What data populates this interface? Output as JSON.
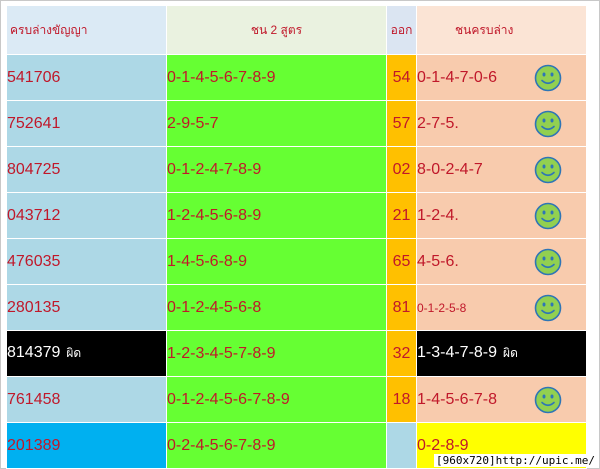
{
  "headers": [
    "ครบล่างขัญญา",
    "ชน 2 สูตร",
    "ออก",
    "ชนครบล่าง"
  ],
  "rows": [
    {
      "num": "541706",
      "pattern": "0-1-4-5-6-7-8-9",
      "out": "54",
      "result": "0-1-4-7-0-6",
      "smiley": true
    },
    {
      "num": "752641",
      "pattern": "2-9-5-7",
      "out": "57",
      "result": "2-7-5.",
      "smiley": true
    },
    {
      "num": "804725",
      "pattern": "0-1-2-4-7-8-9",
      "out": "02",
      "result": "8-0-2-4-7",
      "smiley": true
    },
    {
      "num": "043712",
      "pattern": "1-2-4-5-6-8-9",
      "out": "21",
      "result": "1-2-4.",
      "smiley": true
    },
    {
      "num": "476035",
      "pattern": "1-4-5-6-8-9",
      "out": "65",
      "result": "4-5-6.",
      "smiley": true
    },
    {
      "num": "280135",
      "pattern": "0-1-2-4-5-6-8",
      "out": "81",
      "result": "0-1-2-5-8",
      "smiley": true
    },
    {
      "num": "814379",
      "num_tag": "ผิด",
      "pattern": "1-2-3-4-5-7-8-9",
      "out": "32",
      "result": "1-3-4-7-8-9",
      "result_tag": "ผิด",
      "smiley": false
    },
    {
      "num": "761458",
      "pattern": "0-1-2-4-5-6-7-8-9",
      "out": "18",
      "result": "1-4-5-6-7-8",
      "smiley": true
    },
    {
      "num": "201389",
      "pattern": "0-2-4-5-6-7-8-9",
      "out": "",
      "result": "0-2-8-9",
      "smiley": false
    }
  ],
  "footer": "[960x720]http://upic.me/",
  "icons": {
    "smiley": "smiley-face-icon"
  },
  "colors": {
    "smiley_fill": "#92d050",
    "smiley_stroke": "#2e75b6"
  }
}
